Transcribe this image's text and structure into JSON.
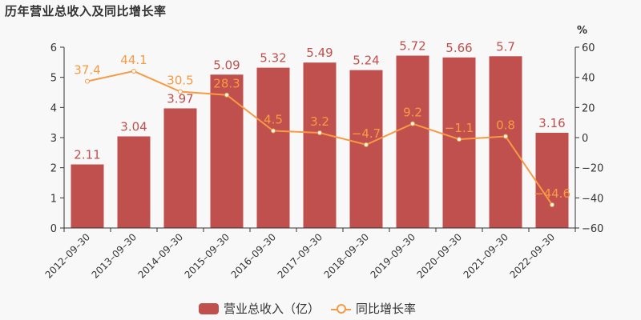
{
  "title": "历年营业总收入及同比增长率",
  "colors": {
    "bar": "#c0504d",
    "bar_label": "#c0504d",
    "line": "#f79a44",
    "axis": "#333333",
    "background": "#f8f8f8"
  },
  "legend": {
    "bar_label": "营业总收入（亿）",
    "line_label": "同比增长率"
  },
  "chart_data": {
    "type": "bar+line",
    "title": "历年营业总收入及同比增长率",
    "categories": [
      "2012-09-30",
      "2013-09-30",
      "2014-09-30",
      "2015-09-30",
      "2016-09-30",
      "2017-09-30",
      "2018-09-30",
      "2019-09-30",
      "2020-09-30",
      "2021-09-30",
      "2022-09-30"
    ],
    "series": [
      {
        "name": "营业总收入（亿）",
        "type": "bar",
        "axis": "left",
        "values": [
          2.11,
          3.04,
          3.97,
          5.09,
          5.32,
          5.49,
          5.24,
          5.72,
          5.66,
          5.7,
          3.16
        ]
      },
      {
        "name": "同比增长率",
        "type": "line",
        "axis": "right",
        "values": [
          37.4,
          44.1,
          30.5,
          28.3,
          4.5,
          3.2,
          -4.7,
          9.2,
          -1.1,
          0.8,
          -44.6
        ]
      }
    ],
    "left_axis": {
      "ylim": [
        0,
        6
      ],
      "ticks": [
        0,
        1,
        2,
        3,
        4,
        5,
        6
      ]
    },
    "right_axis": {
      "label": "%",
      "ylim": [
        -60,
        60
      ],
      "ticks": [
        -60,
        -40,
        -20,
        0,
        20,
        40,
        60
      ]
    },
    "grid": false,
    "legend_position": "bottom"
  }
}
